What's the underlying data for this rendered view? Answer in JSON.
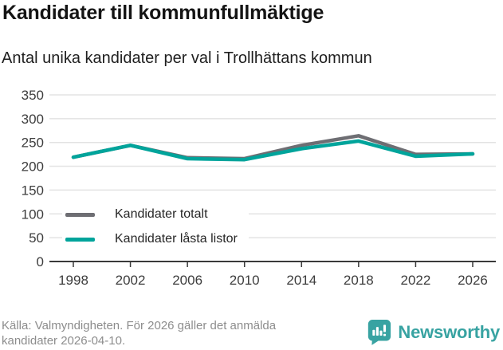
{
  "header": {
    "title": "Kandidater till kommunfullmäktige",
    "subtitle": "Antal unika kandidater per val i Trollhättans kommun"
  },
  "chart_data": {
    "type": "line",
    "categories": [
      "1998",
      "2002",
      "2006",
      "2010",
      "2014",
      "2018",
      "2022",
      "2026"
    ],
    "series": [
      {
        "name": "Kandidater totalt",
        "color": "#6e6e73",
        "values": [
          219,
          244,
          218,
          216,
          244,
          264,
          225,
          226
        ]
      },
      {
        "name": "Kandidater låsta listor",
        "color": "#00a49b",
        "values": [
          219,
          244,
          216,
          214,
          237,
          253,
          221,
          226
        ]
      }
    ],
    "ylim": [
      0,
      350
    ],
    "ytick_step": 50,
    "grid": true,
    "legend_position": "inside-left",
    "gridline_color": "#e3e3e3",
    "axis_color": "#3a3a3a",
    "tick_label_color": "#3d3d3d"
  },
  "footer": {
    "source": "Källa: Valmyndigheten. För 2026 gäller det anmälda kandidater 2026-04-10.",
    "brand": "Newsworthy",
    "brand_color": "#38a3a2"
  }
}
